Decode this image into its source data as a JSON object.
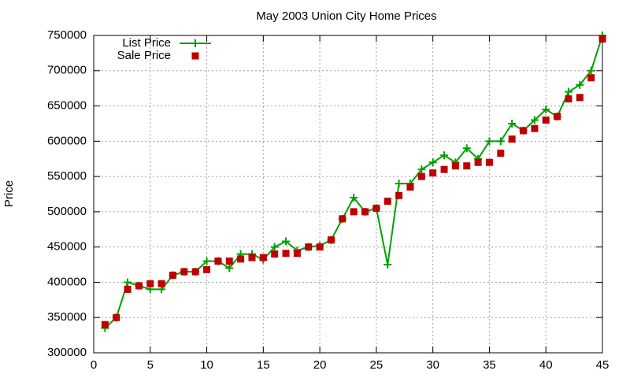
{
  "chart_data": {
    "type": "line",
    "title": "May 2003 Union City Home Prices",
    "y_label": "Price",
    "x": [
      1,
      2,
      3,
      4,
      5,
      6,
      7,
      8,
      9,
      10,
      11,
      12,
      13,
      14,
      15,
      16,
      17,
      18,
      19,
      20,
      21,
      22,
      23,
      24,
      25,
      26,
      27,
      28,
      29,
      30,
      31,
      32,
      33,
      34,
      35,
      36,
      37,
      38,
      39,
      40,
      41,
      42,
      43,
      44,
      45
    ],
    "series": [
      {
        "name": "List Price",
        "color": "#00a000",
        "style": "linespoints",
        "marker": "plus",
        "values": [
          335000,
          350000,
          400000,
          395000,
          390000,
          390000,
          410000,
          415000,
          415000,
          430000,
          430000,
          420000,
          440000,
          440000,
          432000,
          450000,
          458000,
          445000,
          450000,
          452000,
          460000,
          490000,
          520000,
          500000,
          505000,
          425000,
          540000,
          540000,
          560000,
          570000,
          580000,
          570000,
          590000,
          575000,
          600000,
          600000,
          625000,
          615000,
          630000,
          645000,
          635000,
          670000,
          680000,
          700000,
          750000
        ]
      },
      {
        "name": "Sale Price",
        "color": "#c00000",
        "style": "points",
        "marker": "square",
        "values": [
          340000,
          350000,
          390000,
          395000,
          398000,
          398000,
          410000,
          415000,
          415000,
          418000,
          430000,
          430000,
          433000,
          435000,
          435000,
          440000,
          441000,
          441000,
          450000,
          450000,
          460000,
          490000,
          500000,
          500000,
          505000,
          515000,
          523000,
          535000,
          550000,
          555000,
          560000,
          565000,
          565000,
          570000,
          570000,
          583000,
          603000,
          615000,
          618000,
          630000,
          635000,
          660000,
          662000,
          690000,
          745000
        ]
      }
    ],
    "xlim": [
      0,
      45
    ],
    "xticks": [
      0,
      5,
      10,
      15,
      20,
      25,
      30,
      35,
      40,
      45
    ],
    "ylim": [
      300000,
      750000
    ],
    "yticks": [
      300000,
      350000,
      400000,
      450000,
      500000,
      550000,
      600000,
      650000,
      700000,
      750000
    ],
    "grid": true,
    "legend": "top-left"
  }
}
